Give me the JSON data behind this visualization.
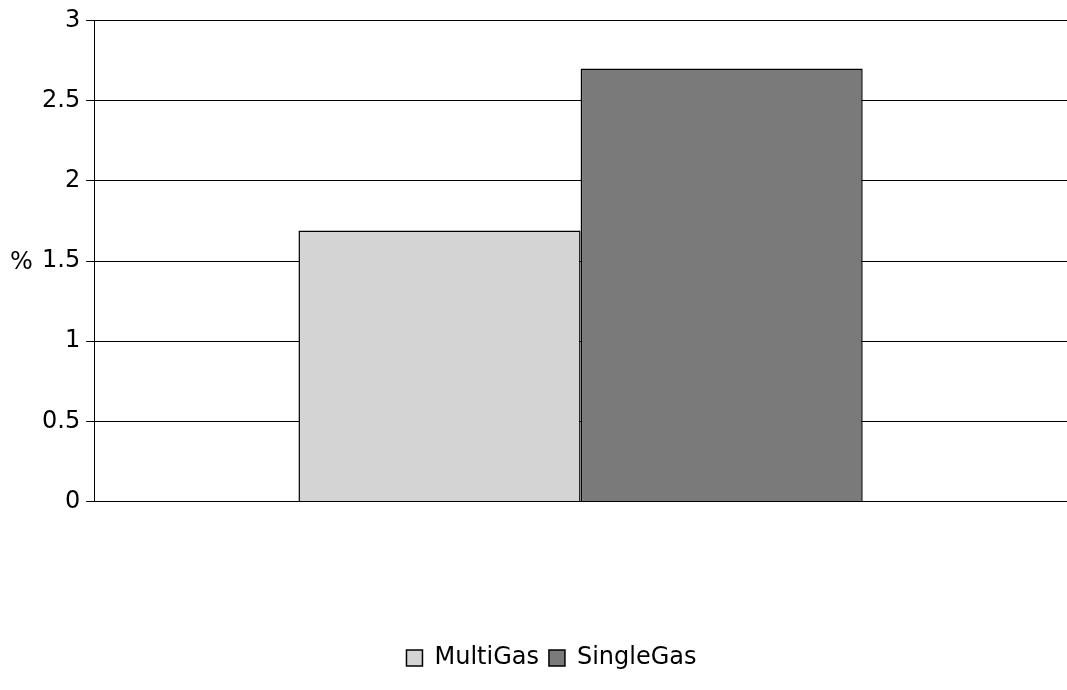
{
  "chart_data": {
    "type": "bar",
    "ylabel": "%",
    "categories": [
      null
    ],
    "series": [
      {
        "name": "MultiGas",
        "color": "#d4d4d4",
        "values": [
          1.69
        ]
      },
      {
        "name": "SingleGas",
        "color": "#7a7a7a",
        "values": [
          2.7
        ]
      }
    ],
    "ylim": [
      0,
      3
    ],
    "yticks": [
      0,
      0.5,
      1,
      1.5,
      2,
      2.5,
      3
    ],
    "grid": "y",
    "legend": "bottom"
  }
}
